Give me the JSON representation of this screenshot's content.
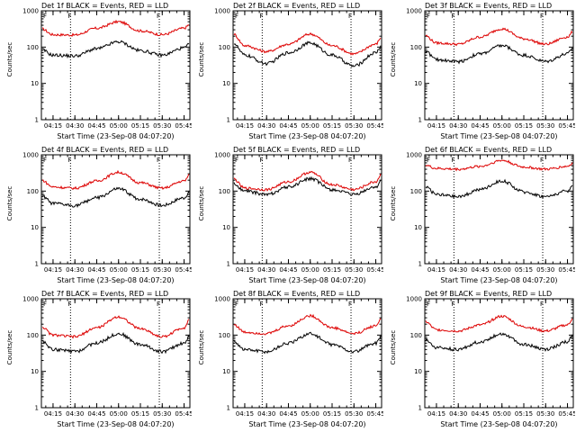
{
  "colors": {
    "events": "#000000",
    "lld": "#dd0000",
    "axes": "#000000"
  },
  "chart_data": [
    {
      "type": "line",
      "title": "Det 1f BLACK = Events, RED = LLD",
      "xlabel": "Start Time (23-Sep-08 04:07:20)",
      "ylabel": "Counts/sec",
      "yscale": "log",
      "ylim": [
        1,
        1000
      ],
      "x_ticks": [
        "04:15",
        "04:30",
        "04:45",
        "05:00",
        "05:15",
        "05:30",
        "05:45"
      ],
      "y_ticks": [
        "1",
        "10",
        "100",
        "1000"
      ],
      "x": [
        "04:07",
        "04:15",
        "04:30",
        "04:45",
        "05:00",
        "05:15",
        "05:30",
        "05:45",
        "05:49"
      ],
      "series": [
        {
          "name": "BLACK = Events",
          "values": [
            85,
            60,
            57,
            90,
            140,
            80,
            60,
            95,
            120
          ]
        },
        {
          "name": "RED = LLD",
          "values": [
            320,
            220,
            215,
            330,
            500,
            280,
            220,
            330,
            420
          ]
        }
      ]
    },
    {
      "type": "line",
      "title": "Det 2f BLACK = Events, RED = LLD",
      "xlabel": "Start Time (23-Sep-08 04:07:20)",
      "ylabel": "Counts/sec",
      "yscale": "log",
      "ylim": [
        1,
        1000
      ],
      "x_ticks": [
        "04:15",
        "04:30",
        "04:45",
        "05:00",
        "05:15",
        "05:30",
        "05:45"
      ],
      "y_ticks": [
        "1",
        "10",
        "100",
        "1000"
      ],
      "x": [
        "04:07",
        "04:15",
        "04:30",
        "04:45",
        "05:00",
        "05:15",
        "05:30",
        "05:45",
        "05:49"
      ],
      "series": [
        {
          "name": "BLACK = Events",
          "values": [
            130,
            60,
            35,
            70,
            130,
            60,
            30,
            70,
            110
          ]
        },
        {
          "name": "RED = LLD",
          "values": [
            230,
            110,
            75,
            120,
            230,
            110,
            65,
            120,
            190
          ]
        }
      ]
    },
    {
      "type": "line",
      "title": "Det 3f BLACK = Events, RED = LLD",
      "xlabel": "Start Time (23-Sep-08 04:07:20)",
      "ylabel": "Counts/sec",
      "yscale": "log",
      "ylim": [
        1,
        1000
      ],
      "x_ticks": [
        "04:15",
        "04:30",
        "04:45",
        "05:00",
        "05:15",
        "05:30",
        "05:45"
      ],
      "y_ticks": [
        "1",
        "10",
        "100",
        "1000"
      ],
      "x": [
        "04:07",
        "04:15",
        "04:30",
        "04:45",
        "05:00",
        "05:15",
        "05:30",
        "05:45",
        "05:49"
      ],
      "series": [
        {
          "name": "BLACK = Events",
          "values": [
            80,
            45,
            40,
            65,
            110,
            60,
            40,
            65,
            95
          ]
        },
        {
          "name": "RED = LLD",
          "values": [
            210,
            130,
            120,
            190,
            320,
            170,
            120,
            190,
            270
          ]
        }
      ]
    },
    {
      "type": "line",
      "title": "Det 4f BLACK = Events, RED = LLD",
      "xlabel": "Start Time (23-Sep-08 04:07:20)",
      "ylabel": "Counts/sec",
      "yscale": "log",
      "ylim": [
        1,
        1000
      ],
      "x_ticks": [
        "04:15",
        "04:30",
        "04:45",
        "05:00",
        "05:15",
        "05:30",
        "05:45"
      ],
      "y_ticks": [
        "1",
        "10",
        "100",
        "1000"
      ],
      "x": [
        "04:07",
        "04:15",
        "04:30",
        "04:45",
        "05:00",
        "05:15",
        "05:30",
        "05:45",
        "05:49"
      ],
      "series": [
        {
          "name": "BLACK = Events",
          "values": [
            75,
            45,
            40,
            65,
            115,
            60,
            40,
            65,
            100
          ]
        },
        {
          "name": "RED = LLD",
          "values": [
            200,
            130,
            120,
            190,
            330,
            170,
            120,
            190,
            280
          ]
        }
      ]
    },
    {
      "type": "line",
      "title": "Det 5f BLACK = Events, RED = LLD",
      "xlabel": "Start Time (23-Sep-08 04:07:20)",
      "ylabel": "Counts/sec",
      "yscale": "log",
      "ylim": [
        1,
        1000
      ],
      "x_ticks": [
        "04:15",
        "04:30",
        "04:45",
        "05:00",
        "05:15",
        "05:30",
        "05:45"
      ],
      "y_ticks": [
        "1",
        "10",
        "100",
        "1000"
      ],
      "x": [
        "04:07",
        "04:15",
        "04:30",
        "04:45",
        "05:00",
        "05:15",
        "05:30",
        "05:45",
        "05:49"
      ],
      "series": [
        {
          "name": "BLACK = Events",
          "values": [
            160,
            100,
            80,
            130,
            220,
            110,
            80,
            130,
            200
          ]
        },
        {
          "name": "RED = LLD",
          "values": [
            220,
            120,
            110,
            180,
            330,
            150,
            110,
            180,
            290
          ]
        }
      ]
    },
    {
      "type": "line",
      "title": "Det 6f BLACK = Events, RED = LLD",
      "xlabel": "Start Time (23-Sep-08 04:07:20)",
      "ylabel": "Counts/sec",
      "yscale": "log",
      "ylim": [
        1,
        1000
      ],
      "x_ticks": [
        "04:15",
        "04:30",
        "04:45",
        "05:00",
        "05:15",
        "05:30",
        "05:45"
      ],
      "y_ticks": [
        "1",
        "10",
        "100",
        "1000"
      ],
      "x": [
        "04:07",
        "04:15",
        "04:30",
        "04:45",
        "05:00",
        "05:15",
        "05:30",
        "05:45",
        "05:49"
      ],
      "series": [
        {
          "name": "BLACK = Events",
          "values": [
            140,
            80,
            70,
            110,
            190,
            95,
            70,
            100,
            140
          ]
        },
        {
          "name": "RED = LLD",
          "values": [
            520,
            420,
            400,
            480,
            700,
            460,
            400,
            480,
            600
          ]
        }
      ]
    },
    {
      "type": "line",
      "title": "Det 7f BLACK = Events, RED = LLD",
      "xlabel": "Start Time (23-Sep-08 04:07:20)",
      "ylabel": "Counts/sec",
      "yscale": "log",
      "ylim": [
        1,
        1000
      ],
      "x_ticks": [
        "04:15",
        "04:30",
        "04:45",
        "05:00",
        "05:15",
        "05:30",
        "05:45"
      ],
      "y_ticks": [
        "1",
        "10",
        "100",
        "1000"
      ],
      "x": [
        "04:07",
        "04:15",
        "04:30",
        "04:45",
        "05:00",
        "05:15",
        "05:30",
        "05:45",
        "05:49"
      ],
      "series": [
        {
          "name": "BLACK = Events",
          "values": [
            70,
            40,
            35,
            60,
            110,
            55,
            35,
            60,
            95
          ]
        },
        {
          "name": "RED = LLD",
          "values": [
            170,
            100,
            90,
            160,
            320,
            150,
            90,
            160,
            280
          ]
        }
      ]
    },
    {
      "type": "line",
      "title": "Det 8f BLACK = Events, RED = LLD",
      "xlabel": "Start Time (23-Sep-08 04:07:20)",
      "ylabel": "Counts/sec",
      "yscale": "log",
      "ylim": [
        1,
        1000
      ],
      "x_ticks": [
        "04:15",
        "04:30",
        "04:45",
        "05:00",
        "05:15",
        "05:30",
        "05:45"
      ],
      "y_ticks": [
        "1",
        "10",
        "100",
        "1000"
      ],
      "x": [
        "04:07",
        "04:15",
        "04:30",
        "04:45",
        "05:00",
        "05:15",
        "05:30",
        "05:45",
        "05:49"
      ],
      "series": [
        {
          "name": "BLACK = Events",
          "values": [
            70,
            40,
            35,
            60,
            110,
            55,
            35,
            60,
            95
          ]
        },
        {
          "name": "RED = LLD",
          "values": [
            200,
            120,
            110,
            180,
            340,
            160,
            110,
            180,
            300
          ]
        }
      ]
    },
    {
      "type": "line",
      "title": "Det 9f BLACK = Events, RED = LLD",
      "xlabel": "Start Time (23-Sep-08 04:07:20)",
      "ylabel": "Counts/sec",
      "yscale": "log",
      "ylim": [
        1,
        1000
      ],
      "x_ticks": [
        "04:15",
        "04:30",
        "04:45",
        "05:00",
        "05:15",
        "05:30",
        "05:45"
      ],
      "y_ticks": [
        "1",
        "10",
        "100",
        "1000"
      ],
      "x": [
        "04:07",
        "04:15",
        "04:30",
        "04:45",
        "05:00",
        "05:15",
        "05:30",
        "05:45",
        "05:49"
      ],
      "series": [
        {
          "name": "BLACK = Events",
          "values": [
            75,
            45,
            40,
            65,
            110,
            55,
            40,
            65,
            100
          ]
        },
        {
          "name": "RED = LLD",
          "values": [
            240,
            140,
            130,
            190,
            330,
            170,
            130,
            190,
            300
          ]
        }
      ]
    }
  ]
}
